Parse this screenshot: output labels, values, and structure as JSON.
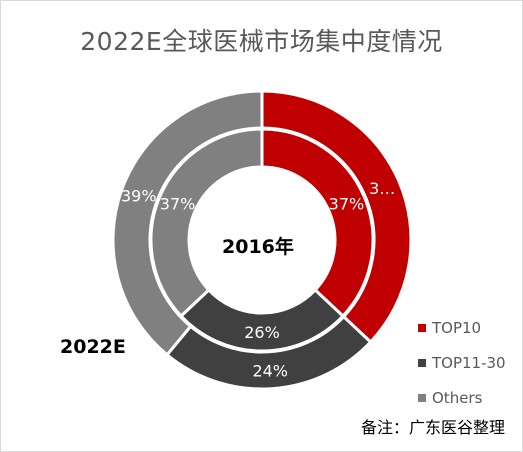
{
  "title": "2022E全球医械市场集中度情况",
  "inner_label": "2016年",
  "outer_label": "2022E",
  "note": "备注：广东医谷整理",
  "chart_data": {
    "type": "donut",
    "title": "2022E全球医械市场集中度情况",
    "categories": [
      "TOP10",
      "TOP11-30",
      "Others"
    ],
    "colors": [
      "#c00000",
      "#404040",
      "#808080"
    ],
    "series": [
      {
        "name": "2016年",
        "values": [
          37,
          26,
          37
        ],
        "labels": [
          "37%",
          "26%",
          "37%"
        ]
      },
      {
        "name": "2022E",
        "values": [
          37,
          24,
          39
        ],
        "labels": [
          "3…",
          "24%",
          "39%"
        ]
      }
    ],
    "legend": "right"
  }
}
